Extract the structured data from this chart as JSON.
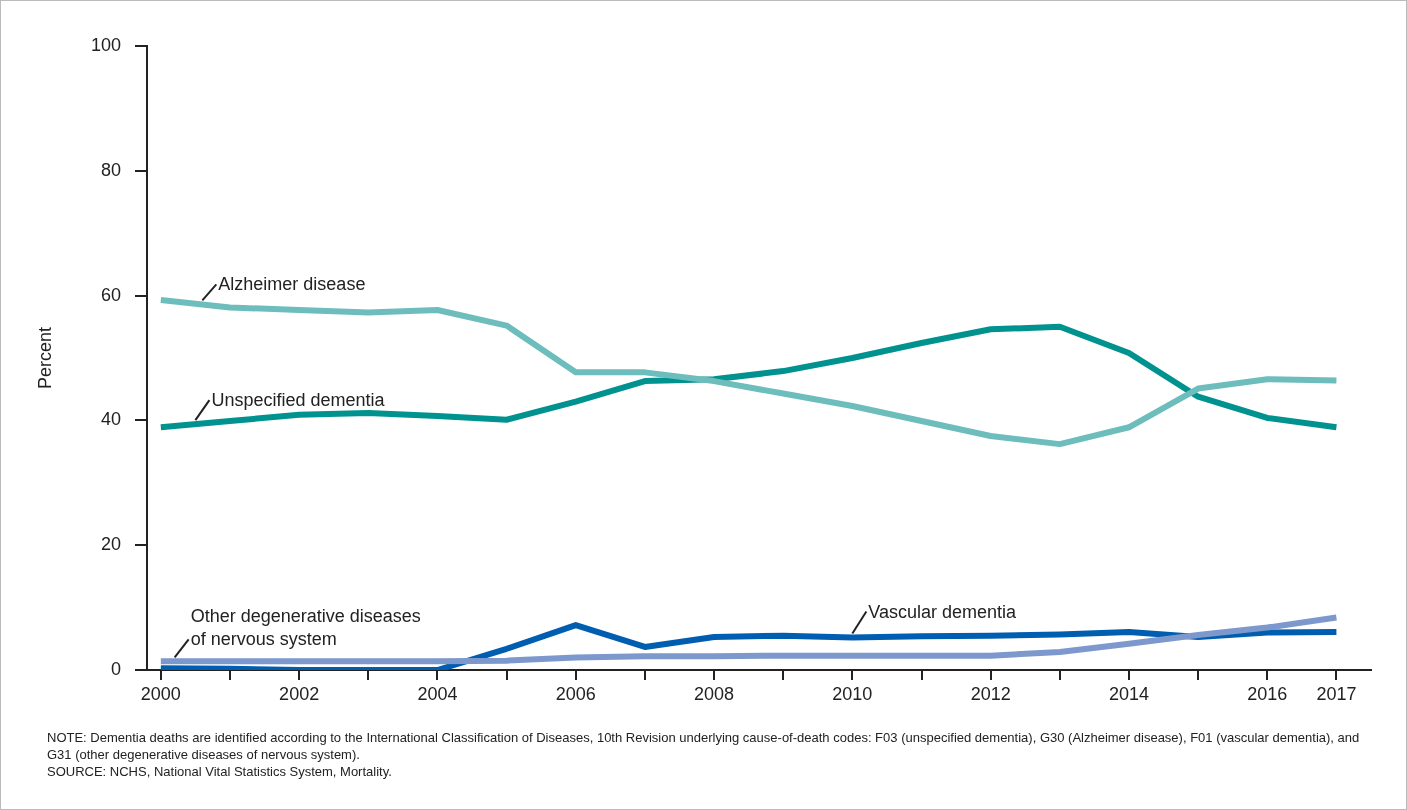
{
  "chart_data": {
    "type": "line",
    "ylabel": "Percent",
    "x": [
      2000,
      2001,
      2002,
      2003,
      2004,
      2005,
      2006,
      2007,
      2008,
      2009,
      2010,
      2011,
      2012,
      2013,
      2014,
      2015,
      2016,
      2017
    ],
    "xlim": [
      1999.8,
      2017.5
    ],
    "xticks": [
      2000,
      {
        "value": 2001,
        "label": null
      },
      2002,
      {
        "value": 2003,
        "label": null
      },
      2004,
      {
        "value": 2005,
        "label": null
      },
      2006,
      {
        "value": 2007,
        "label": null
      },
      2008,
      {
        "value": 2009,
        "label": null
      },
      2010,
      {
        "value": 2011,
        "label": null
      },
      2012,
      {
        "value": 2013,
        "label": null
      },
      2014,
      {
        "value": 2015,
        "label": null
      },
      2016,
      2017
    ],
    "ylim": [
      0,
      100
    ],
    "yticks": [
      0,
      20,
      40,
      60,
      80,
      100
    ],
    "grid": false,
    "legend": false,
    "marker": "none",
    "line_style": "solid",
    "series": [
      {
        "name": "Alzheimer disease",
        "color": "#6dbdbd",
        "values": [
          59.3,
          58.1,
          57.7,
          57.3,
          57.7,
          55.2,
          47.7,
          47.7,
          46.3,
          44.3,
          42.3,
          39.9,
          37.5,
          36.2,
          38.9,
          45.1,
          46.6,
          46.4
        ]
      },
      {
        "name": "Unspecified dementia",
        "color": "#00928f",
        "values": [
          38.9,
          39.9,
          40.9,
          41.2,
          40.7,
          40.1,
          43.0,
          46.3,
          46.6,
          47.9,
          50.0,
          52.4,
          54.6,
          55.0,
          50.8,
          43.8,
          40.4,
          38.9
        ]
      },
      {
        "name": "Other degenerative diseases of nervous system",
        "color": "#7c98cc",
        "values": [
          1.4,
          1.4,
          1.4,
          1.4,
          1.4,
          1.5,
          2.0,
          2.2,
          2.2,
          2.3,
          2.3,
          2.3,
          2.3,
          2.9,
          4.2,
          5.6,
          6.8,
          8.4
        ]
      },
      {
        "name": "Vascular dementia",
        "color": "#005eb0",
        "values": [
          0.3,
          0.2,
          0.0,
          0.0,
          0.0,
          3.4,
          7.2,
          3.7,
          5.3,
          5.5,
          5.2,
          5.4,
          5.5,
          5.7,
          6.1,
          5.3,
          6.0,
          6.1
        ]
      }
    ],
    "annotations": [
      "NOTE: Dementia deaths are identified according to the International Classification of Diseases, 10th Revision underlying cause-of-death codes: F03 (unspecified dementia), G30 (Alzheimer disease), F01 (vascular dementia), and G31 (other degenerative diseases of nervous system).",
      "SOURCE: NCHS, National Vital Statistics System, Mortality."
    ]
  }
}
